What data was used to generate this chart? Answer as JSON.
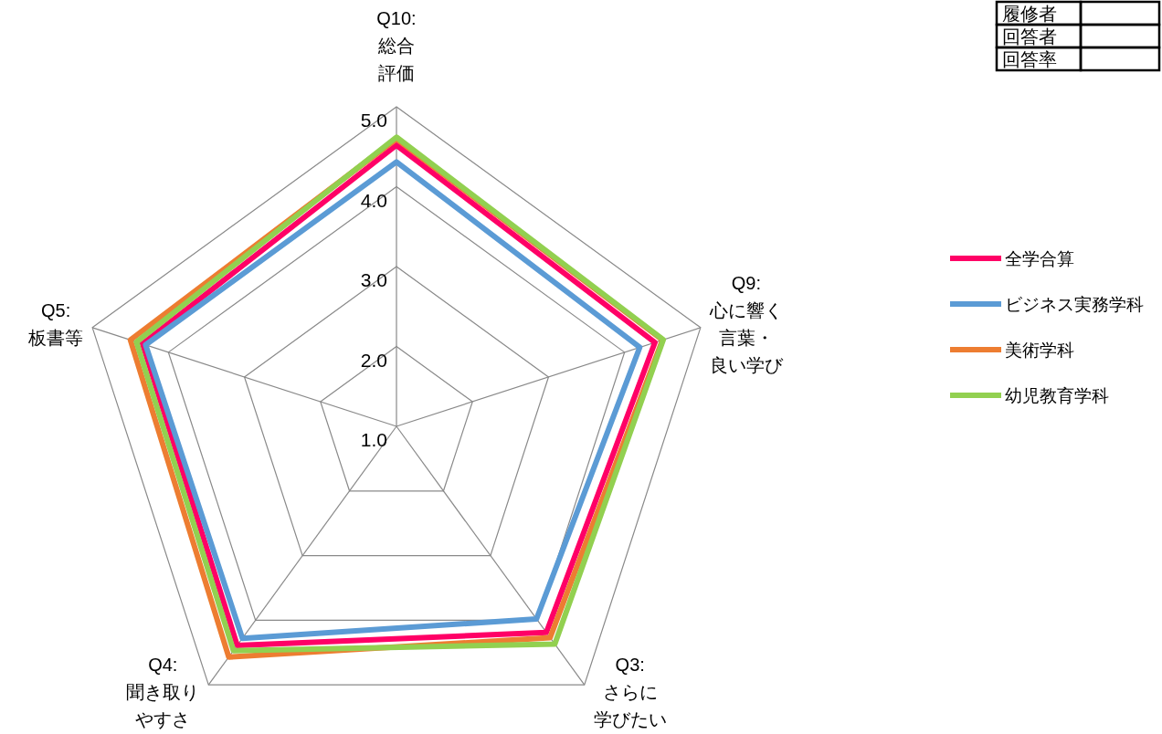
{
  "chart_data": {
    "type": "radar",
    "categories": [
      "Q10:総合評価",
      "Q9:心に響く言葉・良い学び",
      "Q3:さらに学びたい",
      "Q4:聞き取りやすさ",
      "Q5:板書等"
    ],
    "series": [
      {
        "name": "全学合算",
        "color": "#ff0066",
        "values": [
          4.52,
          4.4,
          4.19,
          4.39,
          4.34
        ]
      },
      {
        "name": "ビジネス実務学科",
        "color": "#5b9bd5",
        "values": [
          4.31,
          4.2,
          3.98,
          4.28,
          4.3
        ]
      },
      {
        "name": "美術学科",
        "color": "#ed7d31",
        "values": [
          4.6,
          4.5,
          4.27,
          4.57,
          4.5
        ]
      },
      {
        "name": "幼児教育学科",
        "color": "#92d050",
        "values": [
          4.62,
          4.51,
          4.37,
          4.47,
          4.42
        ]
      }
    ],
    "ylim": [
      1,
      5
    ],
    "yticks": [
      {
        "value": 1,
        "label": "1.0"
      },
      {
        "value": 2,
        "label": "2.0"
      },
      {
        "value": 3,
        "label": "3.0"
      },
      {
        "value": 4,
        "label": "4.0"
      },
      {
        "value": 5,
        "label": "5.0"
      }
    ],
    "grid": true,
    "legend": "right",
    "annotations": [
      "履修者",
      "回答者",
      "回答率"
    ]
  }
}
